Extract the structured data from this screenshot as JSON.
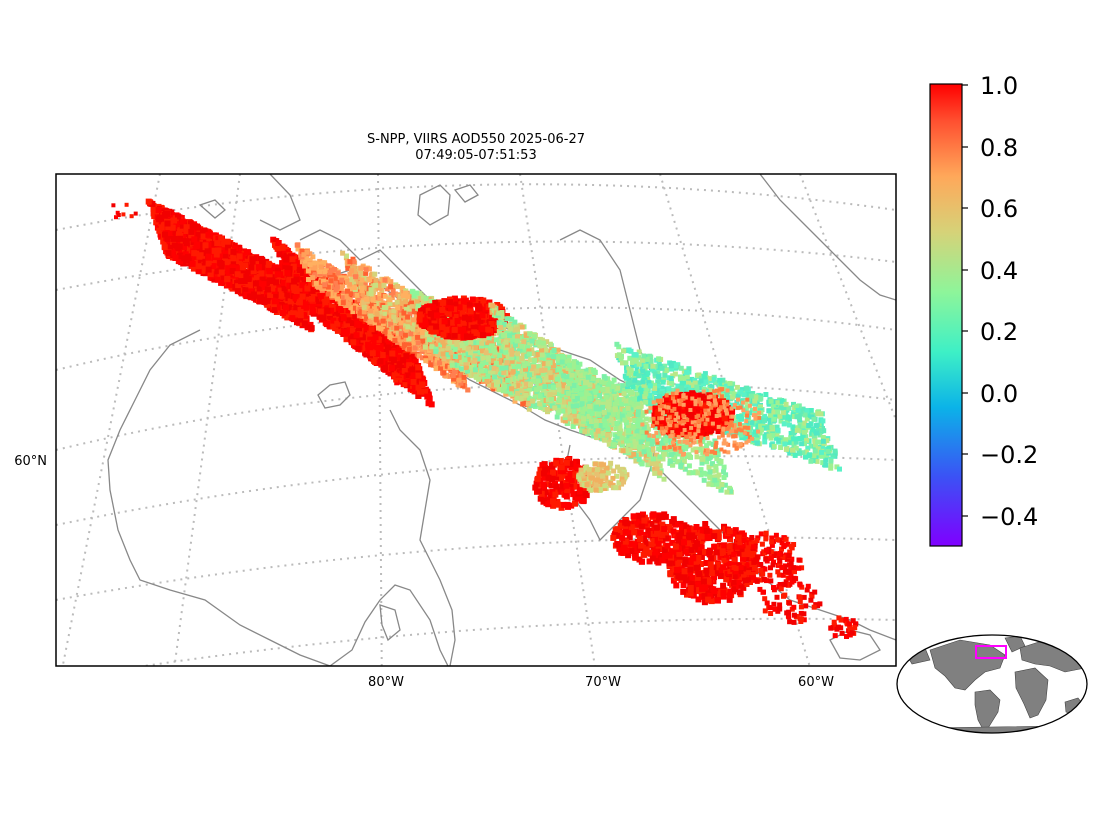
{
  "figure": {
    "title_line1": "S-NPP, VIIRS AOD550 2025-06-27",
    "title_line2": "07:49:05-07:51:53"
  },
  "map": {
    "longitude_labels": [
      "80°W",
      "70°W",
      "60°W"
    ],
    "latitude_labels": [
      "60°N"
    ],
    "gridline_style": "dotted",
    "coastline_color": "#888888",
    "colormap": "rainbow"
  },
  "colorbar": {
    "tick_labels": [
      "1.0",
      "0.8",
      "0.6",
      "0.4",
      "0.2",
      "0.0",
      "−0.2",
      "−0.4"
    ],
    "range": [
      -0.5,
      1.0
    ]
  },
  "inset": {
    "description_icon": "world-overview-globe",
    "highlight_color": "#ff00ff"
  }
}
